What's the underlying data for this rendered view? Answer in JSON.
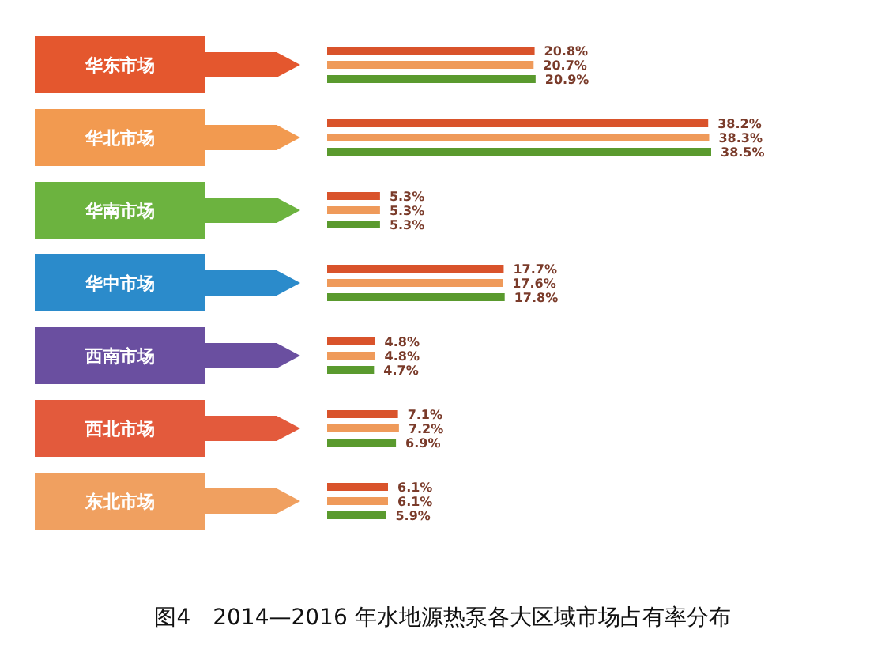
{
  "chart_data": {
    "type": "bar",
    "orientation": "horizontal",
    "title": "图4　2014—2016 年水地源热泵各大区域市场占有率分布",
    "categories": [
      "华东市场",
      "华北市场",
      "华南市场",
      "华中市场",
      "西南市场",
      "西北市场",
      "东北市场"
    ],
    "series": [
      {
        "color": "#d9532b",
        "values": [
          20.8,
          38.2,
          5.3,
          17.7,
          4.8,
          7.1,
          6.1
        ],
        "value_labels": [
          "20.8%",
          "38.2%",
          "5.3%",
          "17.7%",
          "4.8%",
          "7.1%",
          "6.1%"
        ]
      },
      {
        "color": "#ef9a5a",
        "values": [
          20.7,
          38.3,
          5.3,
          17.6,
          4.8,
          7.2,
          6.1
        ],
        "value_labels": [
          "20.7%",
          "38.3%",
          "5.3%",
          "17.6%",
          "4.8%",
          "7.2%",
          "6.1%"
        ]
      },
      {
        "color": "#5a9a2e",
        "values": [
          20.9,
          38.5,
          5.3,
          17.8,
          4.7,
          6.9,
          5.9
        ],
        "value_labels": [
          "20.9%",
          "38.5%",
          "5.3%",
          "17.8%",
          "4.7%",
          "6.9%",
          "5.9%"
        ]
      }
    ]
  }
}
